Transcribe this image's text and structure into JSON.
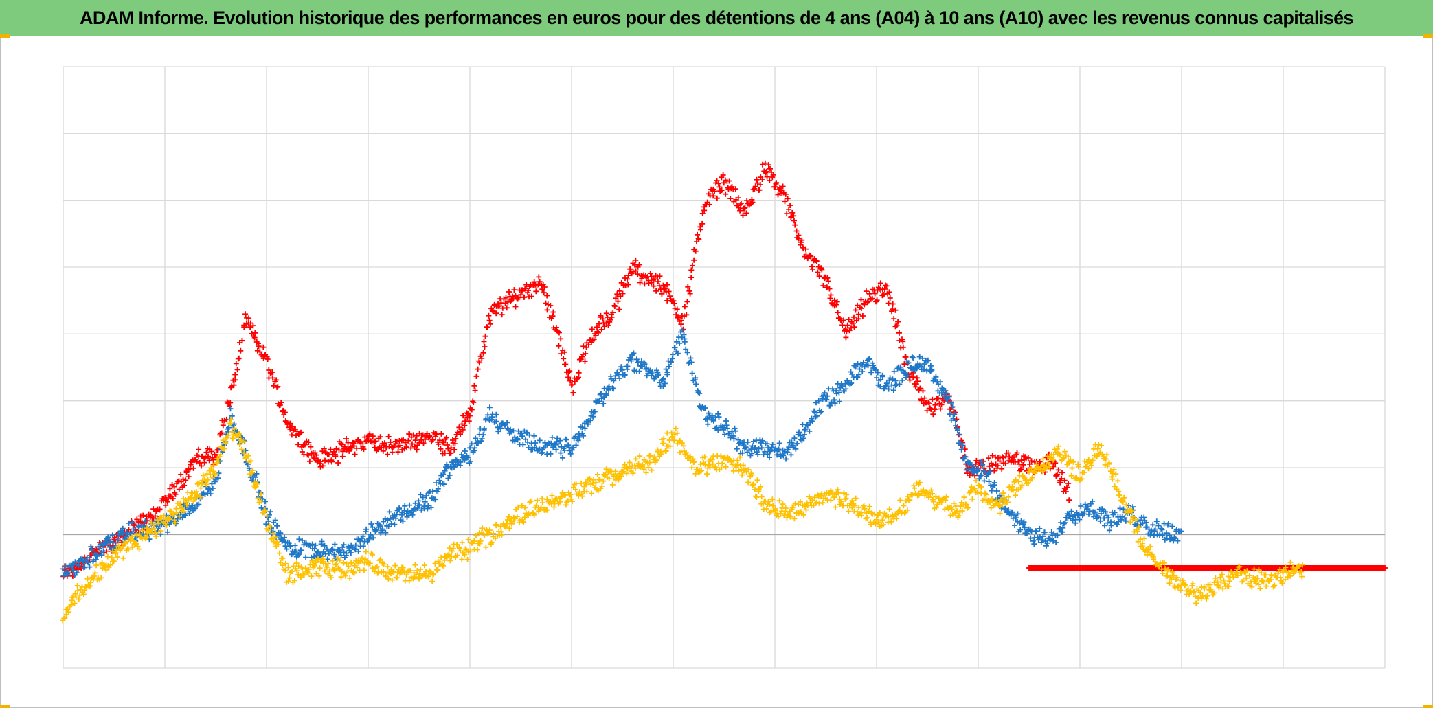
{
  "page": {
    "title": "ADAM Informe. Evolution historique des performances en euros pour des détentions de 4 ans (A04) à 10 ans (A10) avec les revenus connus capitalisés"
  },
  "colors": {
    "title_bar": "#7ecb7e",
    "grid": "#d9d9d9",
    "baseline": "#a6a6a6",
    "frame_accent": "#f0b400"
  },
  "chart_data": {
    "type": "scatter",
    "marker": "plus",
    "title": "ADAM Informe. Evolution historique des performances en euros pour des détentions de 4 ans (A04) à 10 ans (A10) avec les revenus connus capitalisés",
    "xlabel": "",
    "ylabel": "",
    "xlim": [
      0,
      13
    ],
    "ylim": [
      -2,
      7
    ],
    "grid": true,
    "x_gridlines": 13,
    "y_gridlines": [
      0,
      1,
      2,
      3,
      4,
      5,
      6,
      7
    ],
    "baseline_y": 0,
    "axis_labels_visible": false,
    "series": [
      {
        "color": "#ff0000",
        "x": [
          0.0,
          0.3,
          0.6,
          0.9,
          1.1,
          1.3,
          1.5,
          1.65,
          1.8,
          2.0,
          2.2,
          2.5,
          2.8,
          3.0,
          3.3,
          3.6,
          3.8,
          4.0,
          4.2,
          4.4,
          4.7,
          4.9,
          5.0,
          5.2,
          5.4,
          5.6,
          5.9,
          6.1,
          6.3,
          6.5,
          6.7,
          6.9,
          7.1,
          7.3,
          7.5,
          7.7,
          7.9,
          8.1,
          8.3,
          8.5,
          8.7,
          8.9,
          9.1,
          9.3,
          9.5,
          9.7,
          9.9
        ],
        "y": [
          -0.6,
          -0.3,
          0.0,
          0.3,
          0.7,
          1.1,
          1.2,
          2.1,
          3.2,
          2.6,
          1.7,
          1.1,
          1.3,
          1.4,
          1.3,
          1.5,
          1.3,
          1.8,
          3.3,
          3.5,
          3.8,
          2.8,
          2.2,
          3.0,
          3.3,
          4.0,
          3.7,
          3.2,
          4.9,
          5.3,
          4.8,
          5.5,
          5.0,
          4.2,
          3.8,
          3.0,
          3.5,
          3.7,
          2.5,
          1.9,
          2.1,
          1.0,
          1.0,
          1.2,
          1.0,
          1.1,
          0.6
        ],
        "flat_x": [
          9.5,
          13.0
        ],
        "flat_y": -0.5
      },
      {
        "color": "#1f77c8",
        "x": [
          0.0,
          0.3,
          0.6,
          0.9,
          1.1,
          1.3,
          1.5,
          1.65,
          1.8,
          2.0,
          2.2,
          2.5,
          2.8,
          3.0,
          3.3,
          3.6,
          3.8,
          4.0,
          4.2,
          4.4,
          4.7,
          4.9,
          5.0,
          5.2,
          5.4,
          5.6,
          5.9,
          6.1,
          6.3,
          6.5,
          6.7,
          6.9,
          7.1,
          7.3,
          7.5,
          7.7,
          7.9,
          8.1,
          8.3,
          8.5,
          8.7,
          8.9,
          9.1,
          9.3,
          9.5,
          9.7,
          9.9,
          10.1,
          10.3,
          10.5,
          10.7,
          11.0
        ],
        "y": [
          -0.6,
          -0.3,
          0.0,
          0.1,
          0.2,
          0.5,
          0.8,
          1.8,
          1.2,
          0.3,
          -0.2,
          -0.2,
          -0.3,
          0.0,
          0.3,
          0.5,
          1.0,
          1.2,
          1.8,
          1.5,
          1.3,
          1.3,
          1.3,
          1.8,
          2.3,
          2.6,
          2.3,
          3.0,
          1.8,
          1.6,
          1.3,
          1.3,
          1.2,
          1.6,
          2.0,
          2.2,
          2.6,
          2.2,
          2.5,
          2.6,
          2.0,
          1.0,
          0.9,
          0.3,
          0.0,
          -0.1,
          0.3,
          0.4,
          0.2,
          0.3,
          0.1,
          0.0
        ]
      },
      {
        "color": "#ffc000",
        "x": [
          0.0,
          0.2,
          0.4,
          0.6,
          0.9,
          1.1,
          1.3,
          1.5,
          1.65,
          1.8,
          2.0,
          2.2,
          2.5,
          2.8,
          3.0,
          3.3,
          3.6,
          3.8,
          4.0,
          4.2,
          4.5,
          4.8,
          5.0,
          5.3,
          5.6,
          5.8,
          6.0,
          6.2,
          6.5,
          6.7,
          6.9,
          7.1,
          7.3,
          7.5,
          7.7,
          8.0,
          8.2,
          8.4,
          8.6,
          8.8,
          9.0,
          9.2,
          9.4,
          9.6,
          9.8,
          10.0,
          10.2,
          10.4,
          10.6,
          10.8,
          11.0,
          11.2,
          11.4,
          11.6,
          11.8,
          12.0,
          12.2
        ],
        "y": [
          -1.2,
          -0.8,
          -0.5,
          -0.2,
          0.1,
          0.3,
          0.6,
          1.0,
          1.6,
          1.2,
          0.2,
          -0.6,
          -0.5,
          -0.5,
          -0.4,
          -0.6,
          -0.6,
          -0.3,
          -0.2,
          0.0,
          0.3,
          0.5,
          0.6,
          0.8,
          1.0,
          1.1,
          1.5,
          1.0,
          1.1,
          1.0,
          0.5,
          0.3,
          0.4,
          0.6,
          0.5,
          0.2,
          0.3,
          0.7,
          0.5,
          0.3,
          0.7,
          0.4,
          0.8,
          1.0,
          1.2,
          0.9,
          1.3,
          0.6,
          -0.1,
          -0.5,
          -0.8,
          -0.9,
          -0.7,
          -0.6,
          -0.7,
          -0.6,
          -0.5
        ]
      }
    ]
  }
}
